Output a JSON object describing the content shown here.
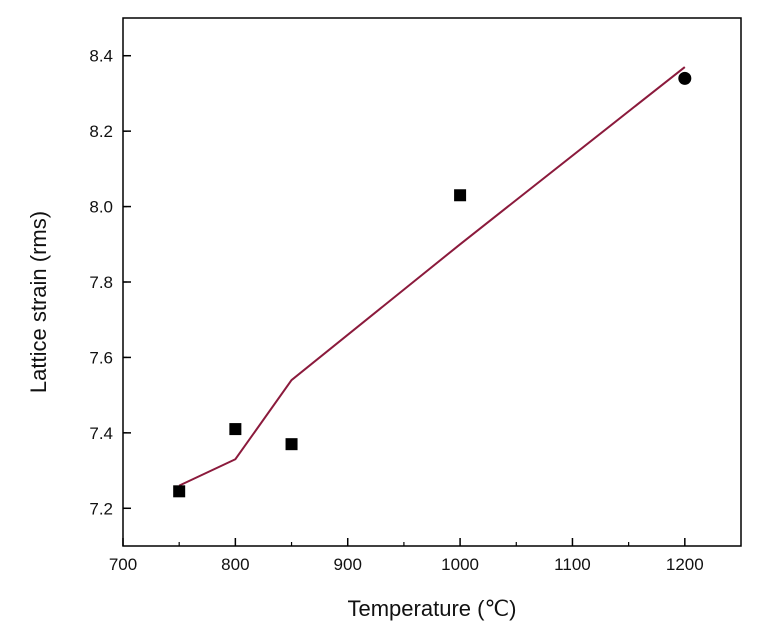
{
  "chart_data": {
    "type": "scatter",
    "title": "",
    "xlabel": "Temperature (℃)",
    "ylabel": "Lattice strain (rms)",
    "xlim": [
      700,
      1250
    ],
    "ylim": [
      7.1,
      8.5
    ],
    "xticks": [
      700,
      800,
      900,
      1000,
      1100,
      1200
    ],
    "xtick_labels": [
      "700",
      "800",
      "900",
      "1000",
      "1100",
      "1200"
    ],
    "yticks": [
      7.2,
      7.4,
      7.6,
      7.8,
      8.0,
      8.2,
      8.4
    ],
    "ytick_labels": [
      "7.2",
      "7.4",
      "7.6",
      "7.8",
      "8.0",
      "8.2",
      "8.4"
    ],
    "grid": false,
    "legend": "none",
    "points": [
      {
        "x": 750,
        "y": 7.245,
        "marker": "square"
      },
      {
        "x": 800,
        "y": 7.41,
        "marker": "square"
      },
      {
        "x": 850,
        "y": 7.37,
        "marker": "square"
      },
      {
        "x": 1000,
        "y": 8.03,
        "marker": "square"
      },
      {
        "x": 1200,
        "y": 8.34,
        "marker": "circle"
      }
    ],
    "fit_line": {
      "x": [
        750,
        800,
        850,
        1000,
        1200
      ],
      "y": [
        7.26,
        7.33,
        7.54,
        7.9,
        8.37
      ]
    },
    "colors": {
      "points": "#000000",
      "line": "#8b1a3c",
      "axes": "#000000"
    }
  }
}
